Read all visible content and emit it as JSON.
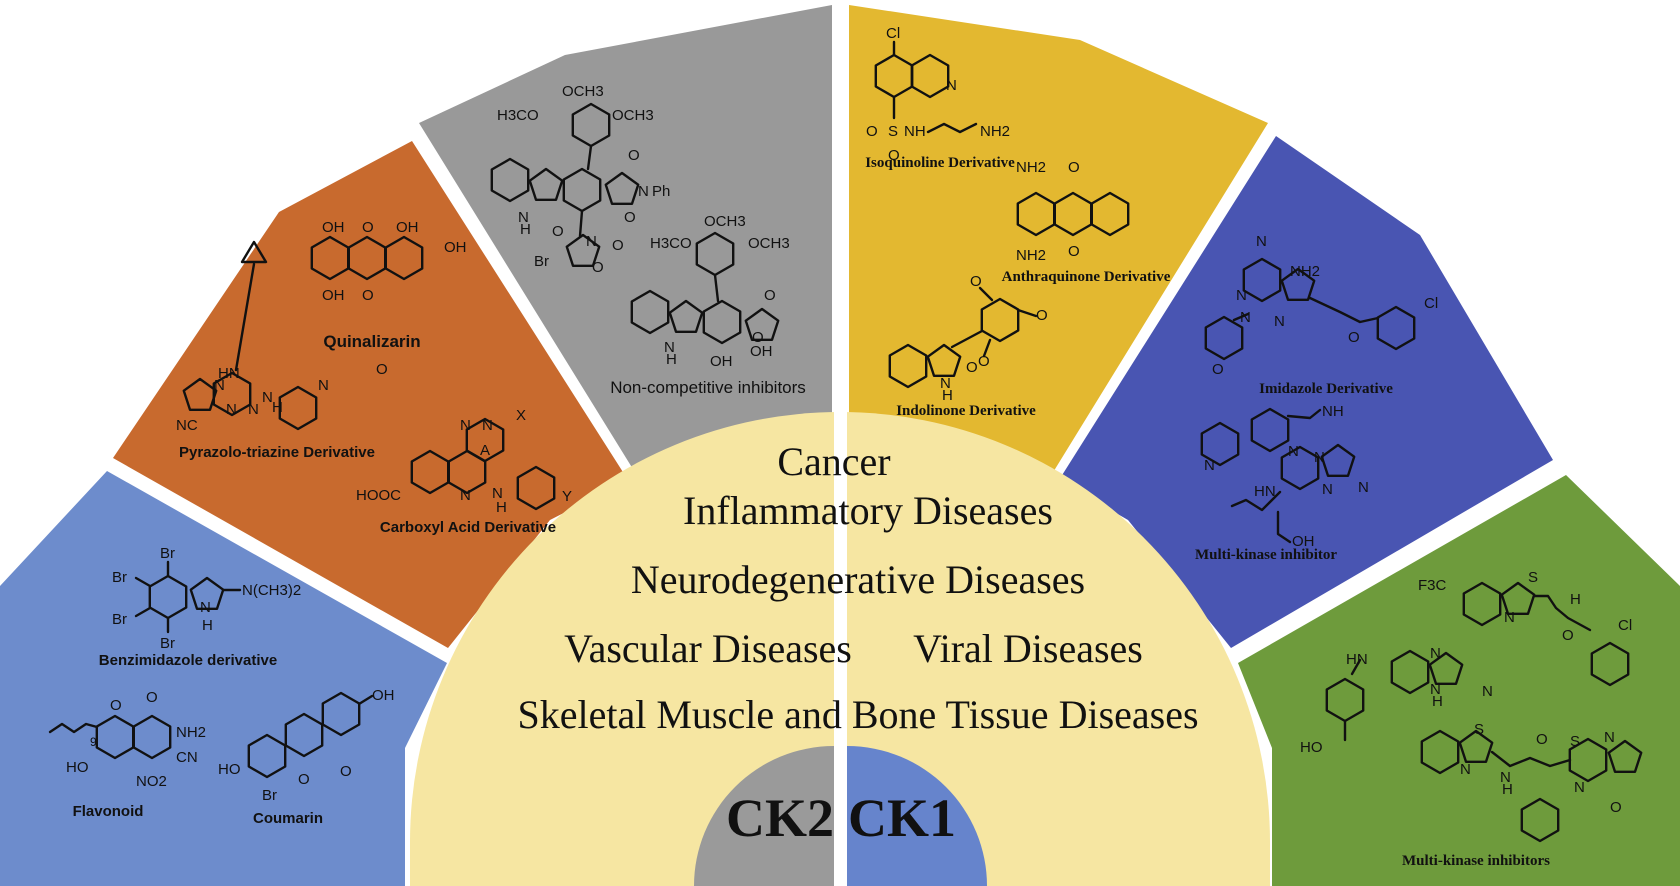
{
  "colors": {
    "ck2_blue": "#6d8ccc",
    "ck2_orange": "#c86a2e",
    "ck2_gray": "#999999",
    "ck1_yellow": "#e3b830",
    "ck1_blue": "#4955b2",
    "ck1_green": "#6e9b3c",
    "disease_area": "#f6e6a2",
    "hub_gray": "#9a9a9a",
    "hub_blue": "#6684cc"
  },
  "hub": {
    "left_label": "CK2",
    "right_label": "CK1"
  },
  "diseases": [
    "Cancer",
    "Inflammatory Diseases",
    "Neurodegenerative Diseases",
    "Vascular Diseases",
    "Viral Diseases",
    "Skeletal Muscle and Bone Tissue Diseases"
  ],
  "sectors": {
    "ck2_blue": {
      "labels": [
        "Benzimidazole derivative",
        "Flavonoid",
        "Coumarin"
      ],
      "atoms": [
        "Br",
        "Br",
        "Br",
        "Br",
        "N(CH3)2",
        "N",
        "H",
        "O",
        "O",
        "NH2",
        "CN",
        "HO",
        "NO2",
        "9",
        "OH",
        "HO",
        "O",
        "O",
        "Br"
      ]
    },
    "ck2_orange": {
      "labels": [
        "Quinalizarin",
        "Pyrazolo-triazine Derivative",
        "Carboxyl Acid Derivative"
      ],
      "atoms": [
        "OH",
        "O",
        "OH",
        "OH",
        "OH",
        "O",
        "HN",
        "N",
        "N",
        "N",
        "N",
        "H",
        "N",
        "O",
        "NC",
        "N",
        "N",
        "X",
        "A",
        "HOOC",
        "N",
        "N",
        "H",
        "Y"
      ]
    },
    "ck2_gray": {
      "labels": [
        "Non-competitive inhibitors"
      ],
      "atoms": [
        "OCH3",
        "H3CO",
        "OCH3",
        "O",
        "N",
        "Ph",
        "N",
        "H",
        "O",
        "O",
        "N",
        "O",
        "Br",
        "O",
        "OCH3",
        "H3CO",
        "OCH3",
        "O",
        "O",
        "N",
        "H",
        "OH",
        "OH"
      ]
    },
    "ck1_yellow": {
      "labels": [
        "Isoquinoline Derivative",
        "Anthraquinone Derivative",
        "Indolinone Derivative"
      ],
      "atoms": [
        "Cl",
        "N",
        "O",
        "S",
        "NH",
        "NH2",
        "O",
        "NH2",
        "O",
        "NH2",
        "O",
        "O",
        "O",
        "O",
        "N",
        "H",
        "O"
      ]
    },
    "ck1_blue": {
      "labels": [
        "Imidazole Derivative",
        "Multi-kinase inhibitor"
      ],
      "atoms": [
        "N",
        "NH2",
        "N",
        "N",
        "N",
        "O",
        "Cl",
        "O",
        "NH",
        "N",
        "N",
        "HN",
        "N",
        "N",
        "OH",
        "N"
      ]
    },
    "ck1_green": {
      "labels": [
        "Multi-kinase inhibitors"
      ],
      "atoms": [
        "F3C",
        "S",
        "N",
        "H",
        "O",
        "Cl",
        "HN",
        "N",
        "N",
        "H",
        "N",
        "HO",
        "S",
        "N",
        "N",
        "H",
        "O",
        "S",
        "N",
        "N",
        "O"
      ]
    }
  }
}
